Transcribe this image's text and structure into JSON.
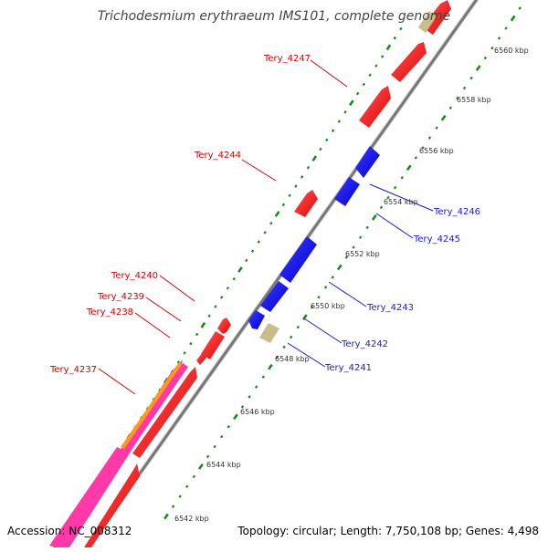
{
  "title": "Trichodesmium erythraeum IMS101, complete genome",
  "footer": {
    "accession": "Accession: NC_008312",
    "topology": "Topology: circular; Length: 7,750,108 bp; Genes: 4,498"
  },
  "kbp_labels": [
    "6542 kbp",
    "6544 kbp",
    "6546 kbp",
    "6548 kbp",
    "6550 kbp",
    "6552 kbp",
    "6554 kbp",
    "6556 kbp",
    "6558 kbp",
    "6560 kbp"
  ],
  "gene_labels": {
    "tery_4237": "Tery_4237",
    "tery_4238": "Tery_4238",
    "tery_4239": "Tery_4239",
    "tery_4240": "Tery_4240",
    "tery_4244": "Tery_4244",
    "tery_4247": "Tery_4247",
    "tery_4241": "Tery_4241",
    "tery_4242": "Tery_4242",
    "tery_4243": "Tery_4243",
    "tery_4245": "Tery_4245",
    "tery_4246": "Tery_4246"
  },
  "colors": {
    "forward_gene": "#ff0000",
    "reverse_gene": "#0000ff",
    "rna_gene": "#c8be8c",
    "pink_feature": "#ff3aa8",
    "orange_feature": "#ff9a1a",
    "backbone": "#888888",
    "tick": "#1a8c1a",
    "label_red": "#d40000",
    "label_blue": "#1a1adb"
  }
}
